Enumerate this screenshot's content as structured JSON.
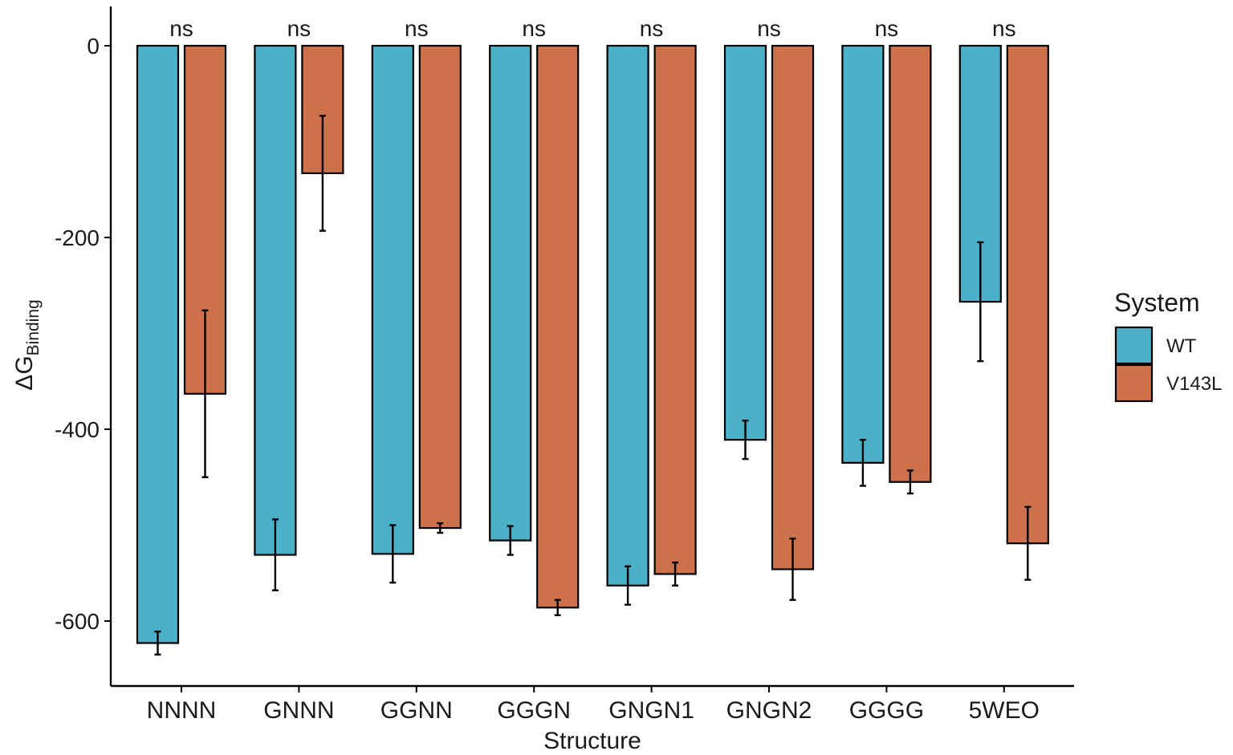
{
  "chart_data": {
    "type": "bar",
    "title": "",
    "xlabel": "Structure",
    "ylabel": {
      "main": "ΔG",
      "subscript": "Binding"
    },
    "ylim": [
      -660,
      40
    ],
    "yticks": [
      0,
      -200,
      -400,
      -600
    ],
    "categories": [
      "NNNN",
      "GNNN",
      "GGNN",
      "GGGN",
      "GNGN1",
      "GNGN2",
      "GGGG",
      "5WEO"
    ],
    "series": [
      {
        "name": "WT",
        "color": "#4ab1c9",
        "values": [
          -623,
          -531,
          -530,
          -516,
          -563,
          -411,
          -435,
          -267
        ],
        "errors": [
          12,
          37,
          30,
          15,
          20,
          20,
          24,
          62
        ]
      },
      {
        "name": "V143L",
        "color": "#cc714c",
        "values": [
          -363,
          -133,
          -503,
          -586,
          -551,
          -546,
          -455,
          -519
        ],
        "errors": [
          87,
          60,
          5,
          8,
          12,
          32,
          12,
          38
        ]
      }
    ],
    "significance": [
      "ns",
      "ns",
      "ns",
      "ns",
      "ns",
      "ns",
      "ns",
      "ns"
    ],
    "legend": {
      "title": "System",
      "position": "right"
    },
    "grid": false
  }
}
